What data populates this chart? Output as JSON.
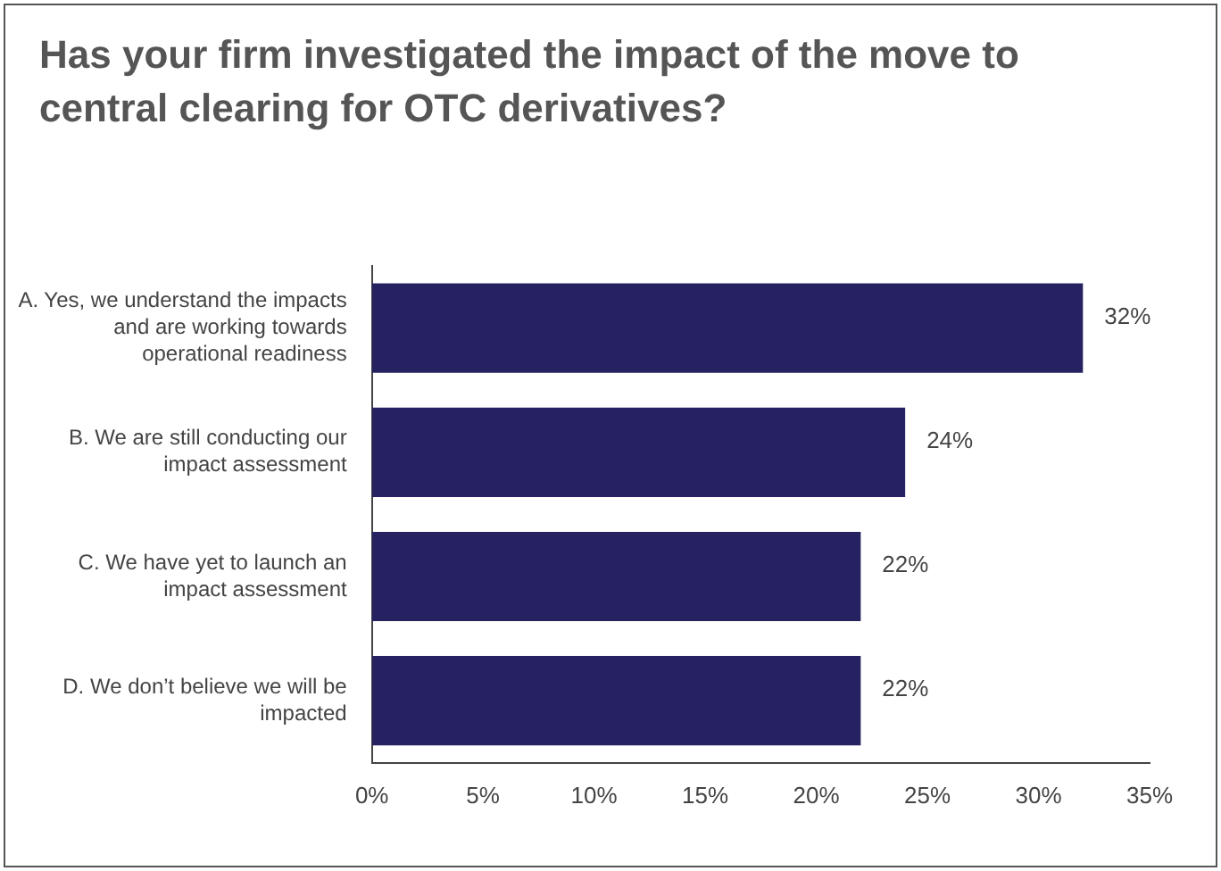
{
  "chart_data": {
    "type": "bar",
    "orientation": "horizontal",
    "title": "Has your firm investigated the impact of the move to central clearing for OTC derivatives?",
    "categories": [
      "A. Yes, we understand the impacts and are working towards operational readiness",
      "B. We are still conducting our impact assessment",
      "C. We have yet to launch an impact assessment",
      "D. We don’t believe we will be impacted"
    ],
    "values": [
      32,
      24,
      22,
      22
    ],
    "color": "#262261",
    "xlim": [
      0,
      35
    ],
    "xticks": [
      {
        "value": 0,
        "label": "0%"
      },
      {
        "value": 5,
        "label": "5%"
      },
      {
        "value": 10,
        "label": "10%"
      },
      {
        "value": 15,
        "label": "15%"
      },
      {
        "value": 20,
        "label": "20%"
      },
      {
        "value": 25,
        "label": "25%"
      },
      {
        "value": 30,
        "label": "30%"
      },
      {
        "value": 35,
        "label": "35%"
      }
    ],
    "data_labels": true,
    "value_labels": [
      "32%",
      "24%",
      "22%",
      "22%"
    ],
    "grid": false,
    "legend": false
  }
}
